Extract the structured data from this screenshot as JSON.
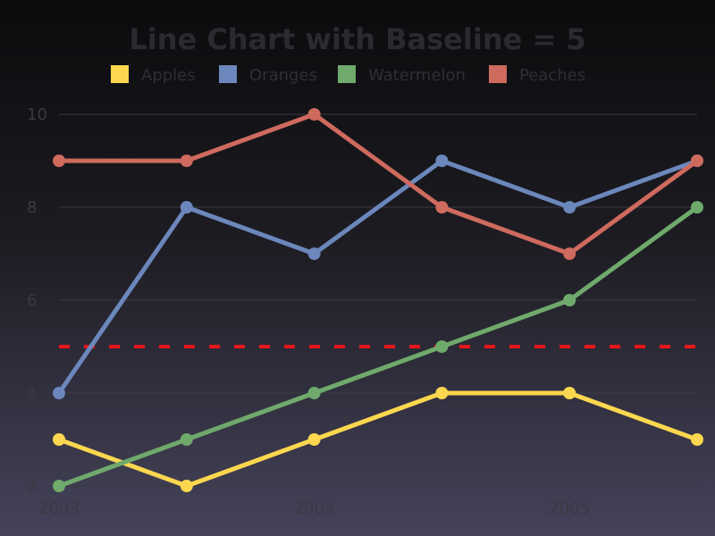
{
  "chart_data": {
    "type": "line",
    "title": "Line Chart with Baseline = 5",
    "x": [
      2003,
      2003.5,
      2004,
      2004.5,
      2005,
      2005.5
    ],
    "x_tick_labels": [
      "2003",
      "2004",
      "2005"
    ],
    "x_tick_values": [
      2003,
      2004,
      2005
    ],
    "y_tick_values": [
      2,
      4,
      6,
      8,
      10
    ],
    "y_tick_labels": [
      "2",
      "4",
      "6",
      "8",
      "10"
    ],
    "ylim": [
      2,
      10
    ],
    "grid": true,
    "legend_position": "top",
    "baseline": {
      "value": 5,
      "color": "#e8161b",
      "style": "dashed"
    },
    "series": [
      {
        "name": "Apples",
        "color": "#fcd74f",
        "values": [
          3,
          2,
          3,
          4,
          4,
          3
        ]
      },
      {
        "name": "Oranges",
        "color": "#6b87bb",
        "values": [
          4,
          8,
          7,
          9,
          8,
          9
        ]
      },
      {
        "name": "Watermelon",
        "color": "#6faa6c",
        "values": [
          2,
          3,
          4,
          5,
          6,
          8
        ]
      },
      {
        "name": "Peaches",
        "color": "#cf6a5e",
        "values": [
          9,
          9,
          10,
          8,
          7,
          9
        ]
      }
    ]
  },
  "colors": {
    "title": "#2b2b2f",
    "legend_text": "#2e2e34",
    "tick_text": "#3a3a42",
    "grid": "#3a3a40"
  }
}
